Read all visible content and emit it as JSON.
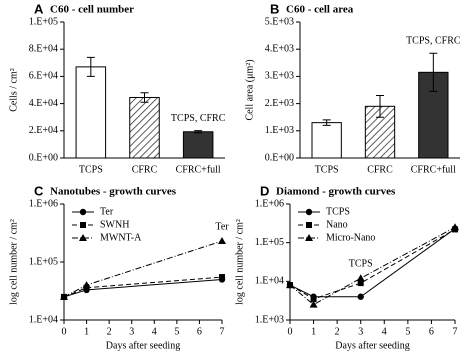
{
  "chart_data": [
    {
      "type": "bar",
      "panel": "A",
      "title": "C60 - cell number",
      "ylabel": "Cells / cm²",
      "categories": [
        "TCPS",
        "CFRC",
        "CFRC+full"
      ],
      "values": [
        67000,
        44500,
        19300
      ],
      "errors": [
        7000,
        3500,
        800
      ],
      "colors": [
        "#ffffff",
        "#ffffff",
        "#333333"
      ],
      "hatched": [
        false,
        true,
        false
      ],
      "ylim": [
        0,
        100000
      ],
      "yticks": [
        {
          "value": 0,
          "label": "0.E+00"
        },
        {
          "value": 20000,
          "label": "2.E+04"
        },
        {
          "value": 40000,
          "label": "4.E+04"
        },
        {
          "value": 60000,
          "label": "6.E+04"
        },
        {
          "value": 80000,
          "label": "8.E+04"
        },
        {
          "value": 100000,
          "label": "1.E+05"
        }
      ],
      "annotations": [
        {
          "text": "TCPS, CFRC",
          "x": "CFRC+full"
        }
      ]
    },
    {
      "type": "bar",
      "panel": "B",
      "title": "C60 - cell area",
      "ylabel": "Cell area (μm²)",
      "categories": [
        "TCPS",
        "CFRC",
        "CFRC+full"
      ],
      "values": [
        1300,
        1900,
        3150
      ],
      "errors": [
        100,
        400,
        700
      ],
      "colors": [
        "#ffffff",
        "#ffffff",
        "#333333"
      ],
      "hatched": [
        false,
        true,
        false
      ],
      "ylim": [
        0,
        5000
      ],
      "yticks": [
        {
          "value": 0,
          "label": "0.E+00"
        },
        {
          "value": 1000,
          "label": "1.E+03"
        },
        {
          "value": 2000,
          "label": "2.E+03"
        },
        {
          "value": 3000,
          "label": "3.E+03"
        },
        {
          "value": 4000,
          "label": "4.E+03"
        },
        {
          "value": 5000,
          "label": "5.E+03"
        }
      ],
      "annotations": [
        {
          "text": "TCPS, CFRC",
          "x": "CFRC+full"
        }
      ]
    },
    {
      "type": "line",
      "panel": "C",
      "title": "Nanotubes - growth curves",
      "xlabel": "Days after seeding",
      "ylabel": "log cell number / cm²",
      "x": [
        0,
        1,
        7
      ],
      "log_scale": true,
      "legend": "upper left",
      "xlim": [
        0,
        7
      ],
      "xticks": [
        0,
        1,
        2,
        3,
        4,
        5,
        6,
        7
      ],
      "ylim": [
        10000,
        1000000
      ],
      "yticks": [
        {
          "value": 10000,
          "label": "1.E+04"
        },
        {
          "value": 100000,
          "label": "1.E+05"
        },
        {
          "value": 1000000,
          "label": "1.E+06"
        }
      ],
      "series": [
        {
          "name": "Ter",
          "color": "#000000",
          "marker": "circle",
          "dash": "solid",
          "values": [
            25000,
            33000,
            50000
          ]
        },
        {
          "name": "SWNH",
          "color": "#000000",
          "marker": "square",
          "dash": "dashed",
          "values": [
            25000,
            36000,
            55000
          ]
        },
        {
          "name": "MWNT-A",
          "color": "#000000",
          "marker": "triangle",
          "dash": "dashdot",
          "values": [
            25000,
            40000,
            230000
          ]
        }
      ],
      "annotations": [
        {
          "text": "Ter",
          "x": 7
        }
      ]
    },
    {
      "type": "line",
      "panel": "D",
      "title": "Diamond - growth curves",
      "xlabel": "Days after seeding",
      "ylabel": "log cell number / cm²",
      "x": [
        0,
        1,
        3,
        7
      ],
      "log_scale": true,
      "legend": "upper left",
      "xlim": [
        0,
        7
      ],
      "xticks": [
        0,
        1,
        2,
        3,
        4,
        5,
        6,
        7
      ],
      "ylim": [
        1000,
        1000000
      ],
      "yticks": [
        {
          "value": 1000,
          "label": "1.E+03"
        },
        {
          "value": 10000,
          "label": "1.E+04"
        },
        {
          "value": 100000,
          "label": "1.E+05"
        },
        {
          "value": 1000000,
          "label": "1.E+06"
        }
      ],
      "series": [
        {
          "name": "TCPS",
          "color": "#000000",
          "marker": "circle",
          "dash": "solid",
          "values": [
            8000,
            4000,
            4000,
            230000
          ]
        },
        {
          "name": "Nano",
          "color": "#000000",
          "marker": "square",
          "dash": "dashed",
          "values": [
            8000,
            3500,
            9000,
            220000
          ]
        },
        {
          "name": "Micro-Nano",
          "color": "#000000",
          "marker": "triangle",
          "dash": "dashdot",
          "values": [
            8000,
            2500,
            12000,
            250000
          ]
        }
      ],
      "annotations": [
        {
          "text": "TCPS",
          "x": 3
        }
      ]
    }
  ]
}
